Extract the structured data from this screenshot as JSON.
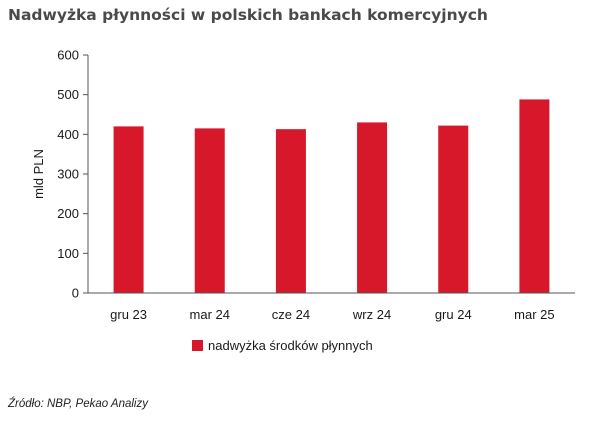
{
  "chart_data": {
    "type": "bar",
    "title": "Nadwyżka płynności w polskich bankach komercyjnych",
    "xlabel": "",
    "ylabel": "mld PLN",
    "categories": [
      "gru 23",
      "mar 24",
      "cze 24",
      "wrz 24",
      "gru 24",
      "mar 25"
    ],
    "series": [
      {
        "name": "nadwyżka środków płynnych",
        "values": [
          420,
          415,
          413,
          430,
          422,
          488
        ],
        "color": "#d7182a"
      }
    ],
    "ylim": [
      0,
      600
    ],
    "yticks": [
      0,
      100,
      200,
      300,
      400,
      500,
      600
    ],
    "grid": false,
    "legend_position": "bottom-center"
  },
  "source": "Źródło: NBP, Pekao Analizy"
}
